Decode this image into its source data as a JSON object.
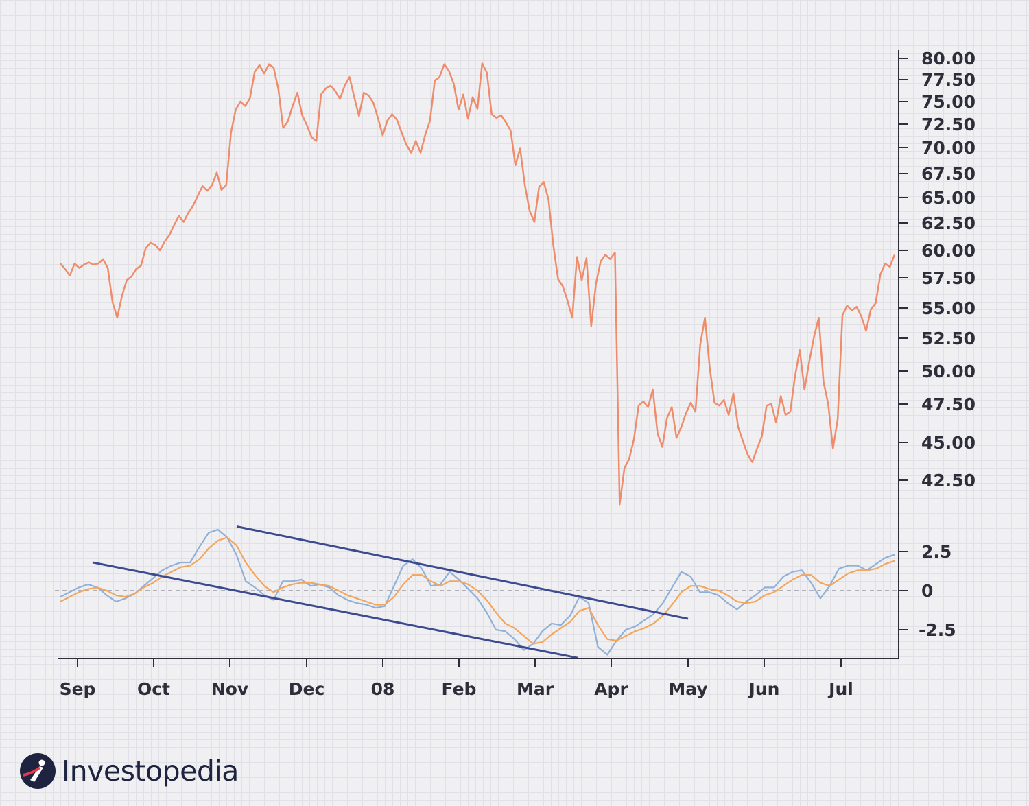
{
  "chart_data": [
    {
      "type": "line",
      "title": "",
      "xlabel": "",
      "ylabel": "",
      "x_tick_labels": [
        "Sep",
        "Oct",
        "Nov",
        "Dec",
        "08",
        "Feb",
        "Mar",
        "Apr",
        "May",
        "Jun",
        "Jul"
      ],
      "y_tick_labels": [
        "80.00",
        "77.50",
        "75.00",
        "72.50",
        "70.00",
        "67.50",
        "65.00",
        "62.50",
        "60.00",
        "57.50",
        "55.00",
        "52.50",
        "50.00",
        "47.50",
        "45.00",
        "42.50"
      ],
      "axis_position": "right",
      "series": [
        {
          "color": "#ef8c6c",
          "values": [
            58.8,
            58.3,
            57.7,
            58.8,
            58.4,
            58.7,
            58.9,
            58.7,
            58.8,
            59.2,
            58.4,
            55.5,
            54.2,
            56.0,
            57.3,
            57.6,
            58.3,
            58.6,
            60.2,
            60.7,
            60.5,
            60.0,
            60.8,
            61.4,
            62.3,
            63.2,
            62.6,
            63.5,
            64.2,
            65.2,
            66.2,
            65.7,
            66.3,
            67.6,
            65.8,
            66.3,
            71.6,
            74.1,
            75.0,
            74.5,
            75.4,
            78.4,
            79.2,
            78.2,
            79.3,
            78.9,
            76.4,
            72.1,
            72.8,
            74.5,
            76.0,
            73.5,
            72.4,
            71.1,
            70.7,
            75.8,
            76.5,
            76.8,
            76.2,
            75.3,
            76.8,
            77.8,
            75.5,
            73.4,
            76.0,
            75.7,
            74.9,
            73.2,
            71.3,
            72.9,
            73.6,
            73.0,
            71.6,
            70.3,
            69.5,
            70.7,
            69.5,
            71.4,
            72.9,
            77.4,
            77.8,
            79.3,
            78.5,
            77.0,
            74.1,
            75.8,
            73.1,
            75.5,
            74.2,
            79.4,
            78.3,
            73.6,
            73.2,
            73.5,
            72.7,
            71.8,
            68.3,
            69.9,
            66.3,
            63.7,
            62.6,
            66.1,
            66.6,
            64.8,
            60.5,
            57.4,
            56.8,
            55.6,
            54.2,
            59.4,
            57.3,
            59.3,
            53.5,
            57.0,
            59.0,
            59.6,
            59.2,
            59.8,
            40.9,
            43.3,
            43.9,
            45.2,
            47.4,
            47.7,
            47.3,
            48.6,
            45.6,
            44.7,
            46.6,
            47.3,
            45.3,
            46.0,
            46.9,
            47.6,
            47.0,
            52.0,
            54.2,
            50.3,
            47.6,
            47.4,
            47.8,
            46.8,
            48.3,
            46.0,
            45.1,
            44.2,
            43.7,
            44.6,
            45.4,
            47.4,
            47.5,
            46.3,
            48.1,
            46.8,
            47.0,
            49.6,
            51.6,
            48.6,
            50.7,
            52.6,
            54.2,
            49.2,
            47.5,
            44.6,
            46.5,
            54.4,
            55.2,
            54.8,
            55.1,
            54.3,
            53.1,
            54.9,
            55.4,
            57.8,
            58.8,
            58.5,
            59.6
          ]
        }
      ]
    },
    {
      "type": "line",
      "title": "",
      "xlabel": "",
      "ylabel": "",
      "y_tick_labels": [
        "2.5",
        "0",
        "-2.5"
      ],
      "axis_position": "right",
      "zero_line": "dashed",
      "series": [
        {
          "color": "#8fb0d8",
          "values": [
            -0.4,
            -0.1,
            0.2,
            0.4,
            0.2,
            -0.3,
            -0.7,
            -0.5,
            -0.2,
            0.3,
            0.8,
            1.3,
            1.6,
            1.8,
            1.8,
            2.8,
            3.7,
            3.9,
            3.4,
            2.3,
            0.6,
            0.2,
            -0.3,
            -0.6,
            0.6,
            0.6,
            0.7,
            0.3,
            0.4,
            0.2,
            -0.3,
            -0.6,
            -0.8,
            -0.9,
            -1.1,
            -1.0,
            0.3,
            1.6,
            2.0,
            1.4,
            0.3,
            0.4,
            1.2,
            0.7,
            0.1,
            -0.5,
            -1.4,
            -2.5,
            -2.6,
            -3.1,
            -3.8,
            -3.4,
            -2.6,
            -2.1,
            -2.2,
            -1.6,
            -0.4,
            -0.8,
            -3.6,
            -4.1,
            -3.2,
            -2.5,
            -2.3,
            -1.9,
            -1.5,
            -0.8,
            0.2,
            1.2,
            0.9,
            -0.1,
            -0.1,
            -0.3,
            -0.8,
            -1.2,
            -0.7,
            -0.3,
            0.2,
            0.2,
            0.9,
            1.2,
            1.3,
            0.5,
            -0.5,
            0.3,
            1.4,
            1.6,
            1.6,
            1.3,
            1.7,
            2.1,
            2.3
          ]
        },
        {
          "color": "#f4a55a",
          "values": [
            -0.7,
            -0.4,
            -0.1,
            0.1,
            0.2,
            0.0,
            -0.3,
            -0.4,
            -0.2,
            0.2,
            0.5,
            0.9,
            1.2,
            1.5,
            1.6,
            2.0,
            2.7,
            3.2,
            3.4,
            2.9,
            1.8,
            1.0,
            0.3,
            -0.1,
            0.2,
            0.4,
            0.5,
            0.5,
            0.4,
            0.3,
            0.0,
            -0.3,
            -0.5,
            -0.7,
            -0.9,
            -0.9,
            -0.4,
            0.4,
            1.0,
            1.0,
            0.6,
            0.3,
            0.6,
            0.6,
            0.4,
            0.0,
            -0.6,
            -1.4,
            -2.1,
            -2.4,
            -2.9,
            -3.4,
            -3.3,
            -2.8,
            -2.4,
            -2.0,
            -1.3,
            -1.1,
            -2.2,
            -3.1,
            -3.2,
            -2.9,
            -2.6,
            -2.4,
            -2.1,
            -1.6,
            -0.9,
            -0.1,
            0.3,
            0.3,
            0.1,
            0.0,
            -0.3,
            -0.7,
            -0.8,
            -0.7,
            -0.3,
            -0.1,
            0.3,
            0.7,
            1.0,
            1.0,
            0.5,
            0.3,
            0.7,
            1.1,
            1.3,
            1.3,
            1.4,
            1.7,
            1.9
          ]
        }
      ],
      "annotations": [
        {
          "type": "trendline",
          "color": "#3c4b8f",
          "from": [
            "Nov",
            4.1
          ],
          "to": [
            "May",
            -1.8
          ]
        },
        {
          "type": "trendline",
          "color": "#3c4b8f",
          "from": [
            "Sep",
            1.8
          ],
          "to": [
            "Mar",
            -4.3
          ]
        }
      ]
    }
  ],
  "logo": {
    "text": "Investopedia"
  }
}
